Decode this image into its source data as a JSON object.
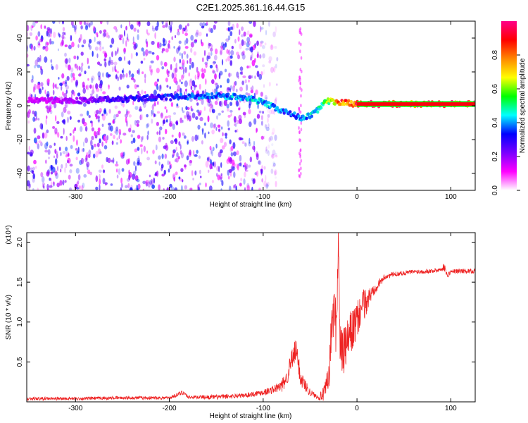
{
  "figure": {
    "title": "C2E1.2025.361.16.44.G15"
  },
  "chart_data": [
    {
      "type": "heatmap",
      "xlabel": "Height of straight line (km)",
      "ylabel": "Frequency (Hz)",
      "xlim": [
        -352,
        126
      ],
      "ylim": [
        -50,
        50
      ],
      "xticks": [
        -300,
        -200,
        -100,
        0,
        100
      ],
      "yticks": [
        -40,
        -20,
        0,
        20,
        40
      ],
      "colorbar": {
        "label": "Normalized spectral amplitude",
        "range": [
          0.0,
          1.0
        ],
        "ticks": [
          0.0,
          0.2,
          0.4,
          0.6,
          0.8
        ],
        "tick_labels": [
          "0.0",
          "0.2",
          "0.4",
          "0.6",
          "0.8"
        ],
        "colors": [
          "#ffffff",
          "#ff00ff",
          "#7a00ff",
          "#0000ff",
          "#00ffff",
          "#00ff00",
          "#ffff00",
          "#ff8800",
          "#ff0000",
          "#ff0088"
        ]
      },
      "ridge": {
        "x": [
          -350,
          -300,
          -250,
          -200,
          -150,
          -120,
          -100,
          -80,
          -60,
          -50,
          -45,
          -40,
          -35,
          -20,
          0,
          126
        ],
        "y": [
          3,
          3,
          4,
          5,
          6,
          5,
          2,
          -3,
          -7,
          -6,
          -3,
          -2,
          3,
          2,
          1,
          1
        ],
        "amplitude": [
          0.15,
          0.2,
          0.3,
          0.35,
          0.4,
          0.45,
          0.45,
          0.4,
          0.4,
          0.45,
          0.45,
          0.5,
          0.55,
          0.8,
          0.95,
          0.95
        ]
      },
      "background_noise_extent_km": [
        -352,
        -100
      ]
    },
    {
      "type": "line",
      "xlabel": "Height of straight line (km)",
      "ylabel": "SNR (10 * v/v)",
      "y_multiplier": "(x10⁴)",
      "xlim": [
        -352,
        126
      ],
      "ylim": [
        0,
        2.12
      ],
      "xticks": [
        -300,
        -200,
        -100,
        0,
        100
      ],
      "yticks": [
        0.5,
        1.0,
        1.5,
        2.0
      ],
      "ytick_labels": [
        "0.5",
        "1.0",
        "1.5",
        "2.0"
      ],
      "color": "#ee2222",
      "series": [
        {
          "x": [
            -350,
            -300,
            -250,
            -200,
            -185,
            -180,
            -150,
            -120,
            -100,
            -90,
            -80,
            -75,
            -70,
            -65,
            -60,
            -55,
            -50,
            -45,
            -40,
            -35,
            -30,
            -28,
            -25,
            -22,
            -20,
            -18,
            -15,
            -10,
            -5,
            0,
            5,
            10,
            15,
            20,
            25,
            30,
            40,
            60,
            80,
            90,
            93,
            96,
            100,
            110,
            126
          ],
          "y": [
            0.04,
            0.04,
            0.05,
            0.05,
            0.12,
            0.06,
            0.06,
            0.08,
            0.12,
            0.15,
            0.2,
            0.3,
            0.5,
            0.65,
            0.3,
            0.2,
            0.12,
            0.08,
            0.06,
            0.1,
            0.3,
            0.7,
            1.2,
            0.9,
            2.1,
            0.7,
            0.6,
            0.75,
            0.9,
            1.0,
            1.2,
            1.25,
            1.35,
            1.45,
            1.5,
            1.57,
            1.6,
            1.63,
            1.64,
            1.66,
            1.7,
            1.58,
            1.63,
            1.64,
            1.64
          ],
          "noise": [
            0.02,
            0.02,
            0.02,
            0.02,
            0.03,
            0.02,
            0.03,
            0.03,
            0.04,
            0.05,
            0.08,
            0.1,
            0.15,
            0.15,
            0.12,
            0.08,
            0.05,
            0.03,
            0.04,
            0.1,
            0.2,
            0.3,
            0.35,
            0.35,
            0.4,
            0.3,
            0.3,
            0.3,
            0.28,
            0.25,
            0.2,
            0.18,
            0.1,
            0.08,
            0.05,
            0.04,
            0.03,
            0.03,
            0.03,
            0.03,
            0.05,
            0.03,
            0.03,
            0.03,
            0.03
          ]
        }
      ]
    }
  ]
}
